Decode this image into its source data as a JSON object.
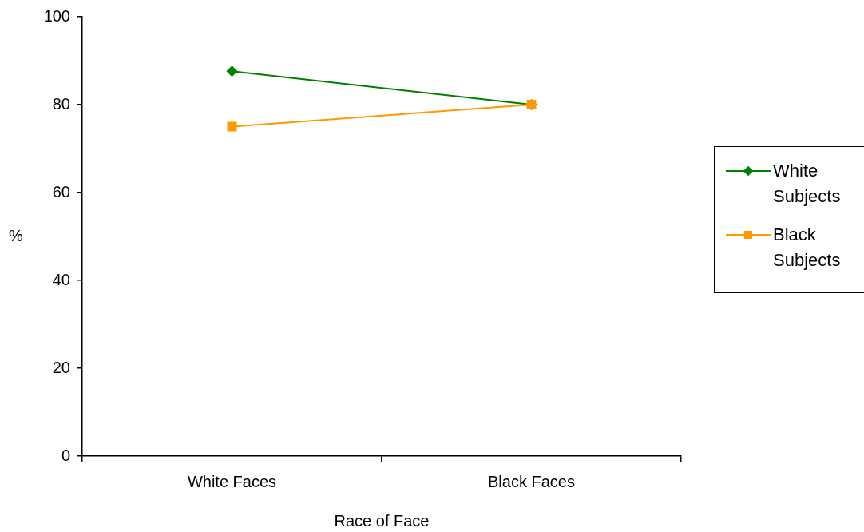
{
  "chart_data": {
    "type": "line",
    "xlabel": "Race of Face",
    "ylabel": "%",
    "categories": [
      "White Faces",
      "Black Faces"
    ],
    "series": [
      {
        "name": "White Subjects",
        "color": "#008000",
        "marker": "diamond",
        "values": [
          87.6,
          80
        ]
      },
      {
        "name": "Black Subjects",
        "color": "#ff9900",
        "marker": "square",
        "values": [
          75,
          80
        ]
      }
    ],
    "ylim": [
      0,
      100
    ],
    "yticks": [
      0,
      20,
      40,
      60,
      80,
      100
    ],
    "grid": false,
    "legend": "right"
  }
}
